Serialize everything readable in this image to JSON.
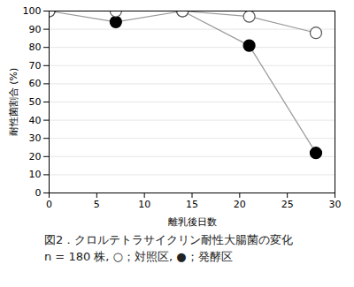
{
  "chart_data": {
    "type": "line",
    "title": "図2．クロルテトラサイクリン耐性大腸菌の変化",
    "subtitle": "n = 180 株, ○；対照区, ●；発酵区",
    "x_label": "離乳後日数",
    "y_label": "耐性菌割合 (%)",
    "x": [
      0,
      7,
      14,
      21,
      28
    ],
    "series": [
      {
        "color": "#000000",
        "marker": "open circle",
        "values": [
          100,
          100,
          100,
          97,
          88
        ]
      },
      {
        "color": "#000000",
        "marker": "filled circle",
        "values": [
          100,
          94,
          100,
          81,
          22
        ]
      }
    ],
    "xlim": [
      0,
      30
    ],
    "xticks": [
      0,
      5,
      10,
      15,
      20,
      25,
      30
    ],
    "ylim": [
      0,
      100
    ],
    "yticks": [
      0,
      10,
      20,
      30,
      40,
      50,
      60,
      70,
      80,
      90,
      100
    ],
    "grid": true
  }
}
